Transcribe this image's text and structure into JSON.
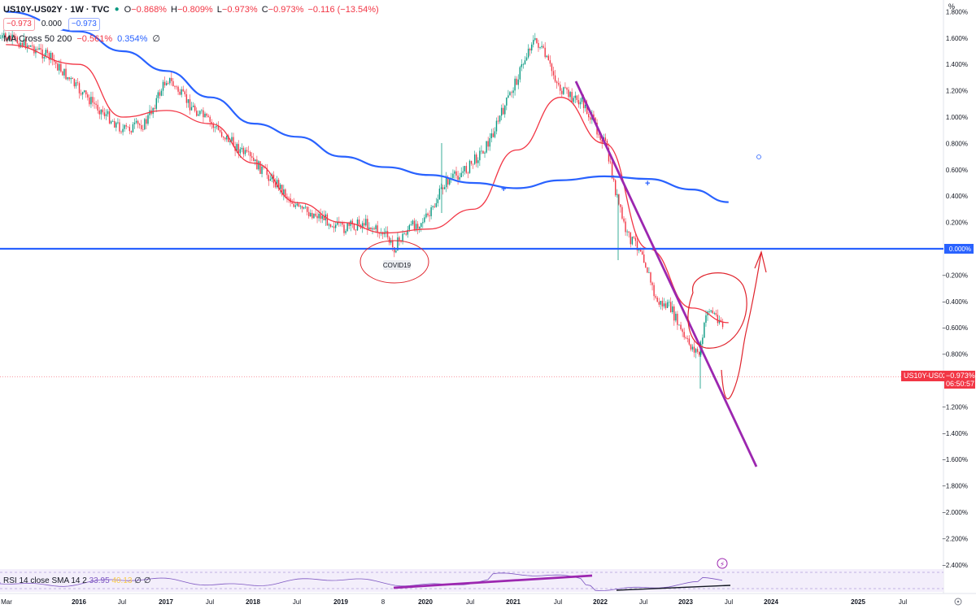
{
  "header": {
    "symbol": "US10Y-US02Y · 1W · TVC",
    "ohlc": {
      "open_label": "O",
      "open": "−0.868%",
      "high_label": "H",
      "high": "−0.809%",
      "low_label": "L",
      "low": "−0.973%",
      "close_label": "C",
      "close": "−0.973%",
      "change": "−0.116 (−13.54%)"
    },
    "price_boxes": {
      "left": "−0.973",
      "mid": "0.000",
      "right": "−0.973"
    },
    "ma_indicator": {
      "title": "MA Cross 50 200",
      "fast": "−0.561%",
      "slow": "0.354%",
      "suffix": "∅"
    }
  },
  "rsi_indicator": {
    "title": "RSI 14 close SMA 14 2",
    "value": "33.95",
    "sma": "40.13",
    "suffix": "∅ ∅"
  },
  "price_axis": {
    "unit": "%",
    "ticks": [
      "1.800%",
      "1.600%",
      "1.400%",
      "1.200%",
      "1.000%",
      "0.800%",
      "0.600%",
      "0.400%",
      "0.200%",
      "0.000%",
      "−0.200%",
      "−0.400%",
      "−0.600%",
      "−0.800%",
      "−1.000%",
      "−1.200%",
      "−1.400%",
      "−1.600%",
      "−1.800%",
      "−2.000%",
      "−2.200%",
      "−2.400%"
    ],
    "highlighted": "0.000%"
  },
  "last_price": {
    "symbol": "US10Y-US02Y",
    "value": "−0.973%",
    "countdown": "06:50:57"
  },
  "time_axis": {
    "labels": [
      "Mar",
      "2016",
      "Jul",
      "2017",
      "Jul",
      "2018",
      "Jul",
      "2019",
      "8",
      "2020",
      "Jul",
      "2021",
      "Jul",
      "2022",
      "Jul",
      "2023",
      "Jul",
      "2024",
      "2025",
      "Jul"
    ]
  },
  "annotations": {
    "covid_label": "COVID19"
  },
  "colors": {
    "up": "#089981",
    "down": "#f23645",
    "ma50": "#f23645",
    "ma200": "#2962ff",
    "horizontal_line": "#2962ff",
    "trendline": "#9c27b0",
    "drawing": "#e0242d",
    "rsi": "#7e57c2"
  },
  "icons": {
    "settings": "gear-icon",
    "alert": "lightning-icon"
  },
  "chart_data": {
    "type": "line",
    "title": "US10Y-US02Y",
    "xlabel": "",
    "ylabel": "",
    "x_range": [
      "2015-03",
      "2025-12"
    ],
    "ylim": [
      -2.4,
      1.8
    ],
    "grid": false,
    "series": [
      {
        "name": "US10Y-US02Y",
        "x": [
          "2015-03",
          "2015-06",
          "2015-09",
          "2016-01",
          "2016-04",
          "2016-07",
          "2016-10",
          "2017-01",
          "2017-04",
          "2017-07",
          "2017-10",
          "2018-01",
          "2018-04",
          "2018-07",
          "2018-10",
          "2019-01",
          "2019-04",
          "2019-07",
          "2019-08",
          "2019-10",
          "2020-01",
          "2020-03",
          "2020-06",
          "2020-09",
          "2021-01",
          "2021-03",
          "2021-04",
          "2021-07",
          "2021-10",
          "2022-01",
          "2022-03",
          "2022-04",
          "2022-06",
          "2022-08",
          "2022-10",
          "2022-12",
          "2023-02",
          "2023-03",
          "2023-05",
          "2023-06"
        ],
        "y": [
          1.6,
          1.55,
          1.45,
          1.2,
          1.05,
          0.9,
          0.95,
          1.3,
          1.1,
          0.95,
          0.8,
          0.65,
          0.5,
          0.3,
          0.25,
          0.15,
          0.2,
          0.1,
          0.0,
          0.15,
          0.25,
          0.5,
          0.6,
          0.8,
          1.3,
          1.58,
          1.55,
          1.2,
          1.1,
          0.8,
          0.3,
          0.1,
          0.0,
          -0.4,
          -0.45,
          -0.7,
          -0.8,
          -0.45,
          -0.55,
          -0.973
        ]
      },
      {
        "name": "MA 50",
        "x": [
          "2015-03",
          "2016-01",
          "2016-07",
          "2017-01",
          "2017-07",
          "2018-01",
          "2018-07",
          "2019-01",
          "2019-07",
          "2020-01",
          "2020-07",
          "2021-01",
          "2021-07",
          "2022-01",
          "2022-07",
          "2023-01",
          "2023-06"
        ],
        "y": [
          1.55,
          1.4,
          1.0,
          1.05,
          0.95,
          0.65,
          0.35,
          0.2,
          0.12,
          0.15,
          0.3,
          0.75,
          1.15,
          0.8,
          0.0,
          -0.45,
          -0.561
        ]
      },
      {
        "name": "MA 200",
        "x": [
          "2015-03",
          "2016-01",
          "2016-07",
          "2017-01",
          "2017-07",
          "2018-01",
          "2018-07",
          "2019-01",
          "2019-07",
          "2020-01",
          "2020-07",
          "2021-01",
          "2021-07",
          "2022-01",
          "2022-07",
          "2023-01",
          "2023-06"
        ],
        "y": [
          1.8,
          1.65,
          1.5,
          1.35,
          1.15,
          0.95,
          0.85,
          0.7,
          0.62,
          0.56,
          0.5,
          0.46,
          0.52,
          0.55,
          0.53,
          0.45,
          0.354
        ]
      }
    ]
  }
}
